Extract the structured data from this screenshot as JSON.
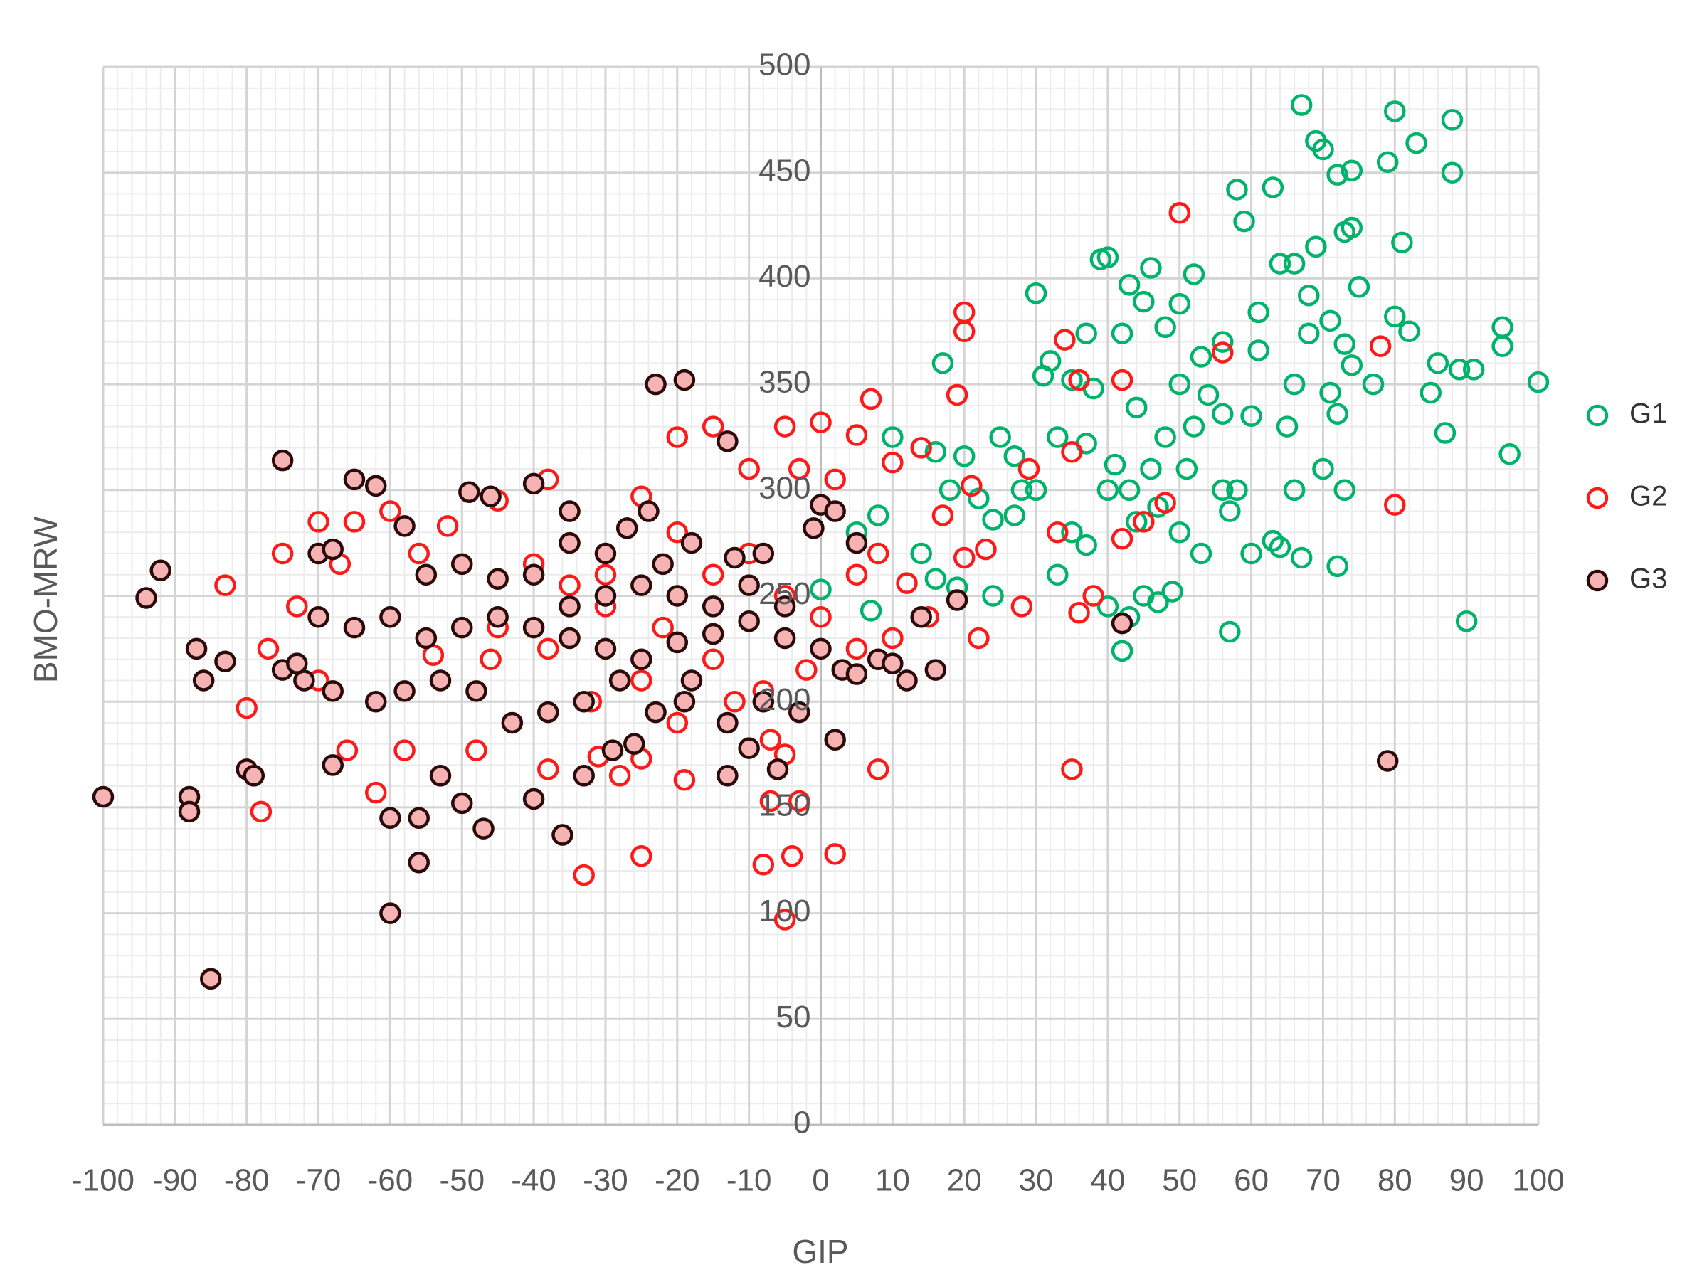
{
  "chart_data": {
    "type": "scatter",
    "x_label": "GIP",
    "y_label": "BMO-MRW",
    "xlim": [
      -100,
      100
    ],
    "xticks": [
      -100,
      -90,
      -80,
      -70,
      -60,
      -50,
      -40,
      -30,
      -20,
      -10,
      0,
      10,
      20,
      30,
      40,
      50,
      60,
      70,
      80,
      90,
      100
    ],
    "ylim": [
      0,
      500
    ],
    "yticks": [
      0,
      50,
      100,
      150,
      200,
      250,
      300,
      350,
      400,
      450,
      500
    ],
    "grid": true,
    "minor_grid": true,
    "legend_position": "right",
    "series": [
      {
        "name": "G1",
        "color": "#00b36b",
        "fill": "none",
        "x": [
          67,
          80,
          88,
          83,
          69,
          70,
          74,
          72,
          79,
          88,
          58,
          63,
          59,
          73,
          74,
          81,
          69,
          40,
          39,
          46,
          52,
          64,
          66,
          30,
          43,
          45,
          50,
          75,
          68,
          61,
          71,
          80,
          82,
          95,
          95,
          100,
          86,
          89,
          91,
          85,
          87,
          96,
          37,
          42,
          48,
          53,
          56,
          61,
          68,
          73,
          74,
          77,
          32,
          31,
          35,
          38,
          44,
          50,
          54,
          56,
          60,
          65,
          66,
          71,
          72,
          17,
          10,
          16,
          20,
          25,
          27,
          33,
          37,
          41,
          46,
          48,
          52,
          40,
          43,
          47,
          51,
          56,
          58,
          66,
          70,
          73,
          18,
          22,
          28,
          30,
          24,
          27,
          35,
          44,
          50,
          57,
          63,
          64,
          67,
          72,
          14,
          16,
          19,
          24,
          33,
          40,
          45,
          49,
          53,
          60,
          8,
          5,
          7,
          0,
          42,
          57,
          90,
          37,
          43,
          47
        ],
        "values": [
          482,
          479,
          475,
          464,
          465,
          461,
          451,
          449,
          455,
          450,
          442,
          443,
          427,
          422,
          424,
          417,
          415,
          410,
          409,
          405,
          402,
          407,
          407,
          393,
          397,
          389,
          388,
          396,
          392,
          384,
          380,
          382,
          375,
          377,
          368,
          351,
          360,
          357,
          357,
          346,
          327,
          317,
          374,
          374,
          377,
          363,
          370,
          366,
          374,
          369,
          359,
          350,
          361,
          354,
          352,
          348,
          339,
          350,
          345,
          336,
          335,
          330,
          350,
          346,
          336,
          360,
          325,
          318,
          316,
          325,
          316,
          325,
          322,
          312,
          310,
          325,
          330,
          300,
          300,
          292,
          310,
          300,
          300,
          300,
          310,
          300,
          300,
          296,
          300,
          300,
          286,
          288,
          280,
          285,
          280,
          290,
          276,
          273,
          268,
          264,
          270,
          258,
          254,
          250,
          260,
          245,
          250,
          252,
          270,
          270,
          288,
          280,
          243,
          253,
          224,
          233,
          238,
          274,
          240,
          247
        ]
      },
      {
        "name": "G2",
        "color": "#ff1a1a",
        "fill": "none",
        "x": [
          50,
          20,
          20,
          19,
          7,
          0,
          34,
          36,
          42,
          56,
          78,
          80,
          48,
          5,
          -5,
          -15,
          -20,
          -10,
          -3,
          2,
          10,
          14,
          21,
          29,
          35,
          -38,
          -25,
          -45,
          -60,
          -70,
          -65,
          -52,
          -83,
          -75,
          -77,
          -80,
          -78,
          -62,
          -58,
          -48,
          -70,
          -66,
          -40,
          -35,
          -30,
          -20,
          -15,
          -10,
          -5,
          0,
          5,
          8,
          12,
          17,
          20,
          23,
          28,
          33,
          36,
          38,
          -33,
          -25,
          -8,
          -5,
          -4,
          2,
          -7,
          -3,
          -19,
          -28,
          -31,
          -38,
          -25,
          -7,
          -5,
          8,
          -46,
          -54,
          -38,
          -32,
          -25,
          -20,
          -15,
          -12,
          -8,
          -2,
          5,
          10,
          15,
          22,
          35,
          42,
          45,
          -22,
          -30,
          -45,
          -56,
          -67,
          -73
        ],
        "values": [
          431,
          384,
          375,
          345,
          343,
          332,
          371,
          352,
          352,
          365,
          368,
          293,
          294,
          326,
          330,
          330,
          325,
          310,
          310,
          305,
          313,
          320,
          302,
          310,
          318,
          305,
          297,
          295,
          290,
          285,
          285,
          283,
          255,
          270,
          225,
          197,
          148,
          157,
          177,
          177,
          210,
          177,
          265,
          255,
          260,
          280,
          260,
          270,
          250,
          240,
          260,
          270,
          256,
          288,
          268,
          272,
          245,
          280,
          242,
          250,
          118,
          127,
          123,
          97,
          127,
          128,
          153,
          153,
          163,
          165,
          174,
          168,
          173,
          182,
          175,
          168,
          220,
          222,
          225,
          200,
          210,
          190,
          220,
          200,
          205,
          215,
          225,
          230,
          240,
          230,
          168,
          277,
          285,
          235,
          245,
          235,
          270,
          265,
          245
        ]
      },
      {
        "name": "G3",
        "color": "#2b0a0a",
        "fill": "#f5b3b3",
        "x": [
          -100,
          -85,
          -60,
          -56,
          -88,
          -88,
          -80,
          -79,
          -92,
          -94,
          -83,
          -87,
          -75,
          -65,
          -62,
          -49,
          -46,
          -40,
          -27,
          -23,
          -19,
          -13,
          -24,
          -35,
          -35,
          -30,
          -22,
          -18,
          -12,
          -8,
          0,
          5,
          -70,
          -68,
          -58,
          -55,
          -50,
          -45,
          -40,
          -35,
          -30,
          -25,
          -20,
          -15,
          -10,
          -5,
          -70,
          -65,
          -60,
          -55,
          -50,
          -45,
          -40,
          -35,
          -30,
          -25,
          -20,
          -15,
          -10,
          -5,
          0,
          3,
          5,
          8,
          12,
          -75,
          -72,
          -68,
          -62,
          -58,
          -53,
          -48,
          -43,
          -38,
          -33,
          -28,
          -23,
          -18,
          -13,
          -8,
          -3,
          2,
          -60,
          -56,
          -50,
          -47,
          -40,
          -36,
          -33,
          -26,
          -13,
          -10,
          -6,
          -19,
          -86,
          -73,
          -68,
          -53,
          16,
          19,
          14,
          42,
          79,
          -1,
          2,
          10,
          -29
        ],
        "values": [
          155,
          69,
          100,
          124,
          155,
          148,
          168,
          165,
          262,
          249,
          219,
          225,
          314,
          305,
          302,
          299,
          297,
          303,
          282,
          350,
          352,
          323,
          290,
          290,
          275,
          270,
          265,
          275,
          268,
          270,
          293,
          275,
          270,
          272,
          283,
          260,
          265,
          258,
          260,
          245,
          250,
          255,
          250,
          245,
          255,
          245,
          240,
          235,
          240,
          230,
          235,
          240,
          235,
          230,
          225,
          220,
          228,
          232,
          238,
          230,
          225,
          215,
          213,
          220,
          210,
          215,
          210,
          205,
          200,
          205,
          210,
          205,
          190,
          195,
          200,
          210,
          195,
          210,
          190,
          200,
          195,
          182,
          145,
          145,
          152,
          140,
          154,
          137,
          165,
          180,
          165,
          178,
          168,
          200,
          210,
          218,
          170,
          165,
          215,
          248,
          240,
          237,
          172,
          282,
          290,
          218,
          177
        ]
      }
    ]
  }
}
